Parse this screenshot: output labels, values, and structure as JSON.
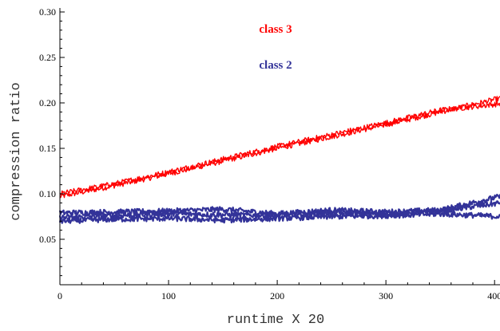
{
  "chart_data": {
    "type": "line",
    "xlabel": "runtime X 20",
    "ylabel": "compression ratio",
    "xlim": [
      0,
      405
    ],
    "ylim": [
      0,
      0.3
    ],
    "xticks": [
      0,
      100,
      200,
      300,
      400
    ],
    "xtick_labels": [
      "0",
      "100",
      "200",
      "300",
      "400"
    ],
    "yticks": [
      0.05,
      0.1,
      0.15,
      0.2,
      0.25,
      0.3
    ],
    "ytick_labels": [
      "0.05",
      "0.10",
      "0.15",
      "0.20",
      "0.25",
      "0.30"
    ],
    "legend_placement": "top-center",
    "grid": false,
    "series": [
      {
        "name": "class 3",
        "color": "#ff0000",
        "x": [
          0,
          50,
          100,
          150,
          200,
          250,
          300,
          350,
          405
        ],
        "values": [
          0.097,
          0.109,
          0.122,
          0.136,
          0.15,
          0.163,
          0.176,
          0.19,
          0.205
        ]
      },
      {
        "name": "class 3",
        "color": "#ff0000",
        "x": [
          0,
          50,
          100,
          150,
          200,
          250,
          300,
          350,
          405
        ],
        "values": [
          0.1,
          0.111,
          0.124,
          0.138,
          0.152,
          0.165,
          0.178,
          0.192,
          0.199
        ]
      },
      {
        "name": "class 2",
        "color": "#333399",
        "x": [
          0,
          50,
          100,
          150,
          200,
          250,
          300,
          350,
          405
        ],
        "values": [
          0.079,
          0.08,
          0.081,
          0.083,
          0.078,
          0.082,
          0.08,
          0.082,
          0.097
        ]
      },
      {
        "name": "class 2",
        "color": "#333399",
        "x": [
          0,
          50,
          100,
          150,
          200,
          250,
          300,
          350,
          405
        ],
        "values": [
          0.074,
          0.076,
          0.078,
          0.077,
          0.076,
          0.079,
          0.078,
          0.081,
          0.09
        ]
      },
      {
        "name": "class 2",
        "color": "#333399",
        "x": [
          0,
          50,
          100,
          150,
          200,
          250,
          300,
          350,
          405
        ],
        "values": [
          0.07,
          0.072,
          0.073,
          0.071,
          0.073,
          0.075,
          0.076,
          0.078,
          0.075
        ]
      }
    ],
    "legend": [
      {
        "label": "class 3",
        "color": "#ff0000"
      },
      {
        "label": "class 2",
        "color": "#333399"
      }
    ]
  }
}
